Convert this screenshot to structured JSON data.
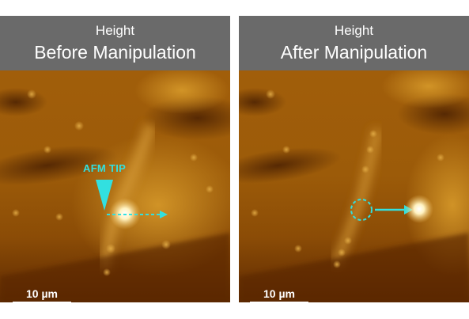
{
  "panels": [
    {
      "subtitle": "Height",
      "title": "Before Manipulation",
      "scale_label": "10 µm",
      "annotation": "AFM TIP"
    },
    {
      "subtitle": "Height",
      "title": "After Manipulation",
      "scale_label": "10 µm"
    }
  ],
  "colors": {
    "annotation": "#32e0e0",
    "header_bg": "#6a6a6a"
  }
}
